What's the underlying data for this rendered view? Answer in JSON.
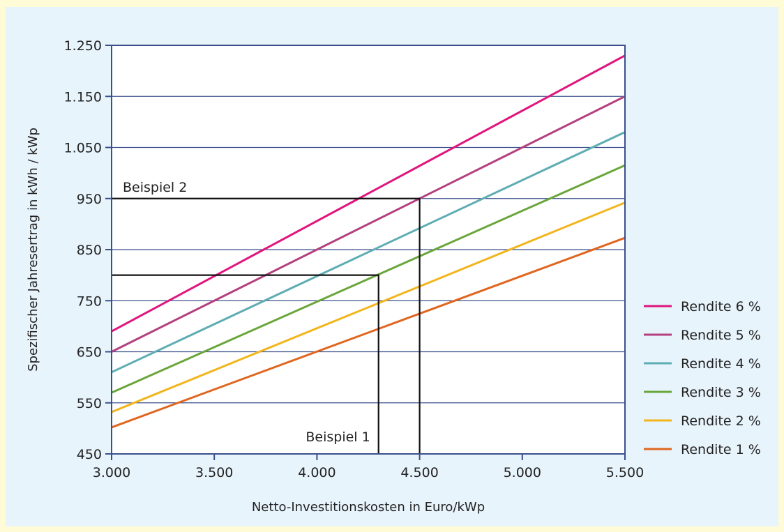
{
  "chart_data": {
    "type": "line",
    "title": "",
    "xlabel": "Netto-Investitionskosten in Euro/kWp",
    "ylabel": "Spezifischer Jahresertrag in kWh / kWp",
    "xlim": [
      3000,
      5500
    ],
    "ylim": [
      450,
      1250
    ],
    "x_ticks": [
      3000,
      3500,
      4000,
      4500,
      5000,
      5500
    ],
    "x_tick_labels": [
      "3.000",
      "3.500",
      "4.000",
      "4.500",
      "5.000",
      "5.500"
    ],
    "y_ticks": [
      450,
      550,
      650,
      750,
      850,
      950,
      1050,
      1150,
      1250
    ],
    "y_tick_labels": [
      "450",
      "550",
      "650",
      "750",
      "850",
      "950",
      "1.050",
      "1.150",
      "1.250"
    ],
    "grid": "horizontal",
    "legend_position": "right",
    "series": [
      {
        "name": "Rendite 6 %",
        "color": "#e0157e",
        "x": [
          3000,
          5500
        ],
        "y": [
          690,
          1230
        ]
      },
      {
        "name": "Rendite 5 %",
        "color": "#b4407e",
        "x": [
          3000,
          5500
        ],
        "y": [
          650,
          1150
        ]
      },
      {
        "name": "Rendite 4 %",
        "color": "#5fadb3",
        "x": [
          3000,
          5500
        ],
        "y": [
          610,
          1080
        ]
      },
      {
        "name": "Rendite 3 %",
        "color": "#6aa63b",
        "x": [
          3000,
          5500
        ],
        "y": [
          570,
          1015
        ]
      },
      {
        "name": "Rendite 2 %",
        "color": "#f2b51d",
        "x": [
          3000,
          5500
        ],
        "y": [
          532,
          942
        ]
      },
      {
        "name": "Rendite 1 %",
        "color": "#e0661f",
        "x": [
          3000,
          5500
        ],
        "y": [
          502,
          873
        ]
      }
    ],
    "annotations": [
      {
        "label": "Beispiel 1",
        "x": 4300,
        "y": 800
      },
      {
        "label": "Beispiel 2",
        "x": 4500,
        "y": 950
      }
    ]
  }
}
